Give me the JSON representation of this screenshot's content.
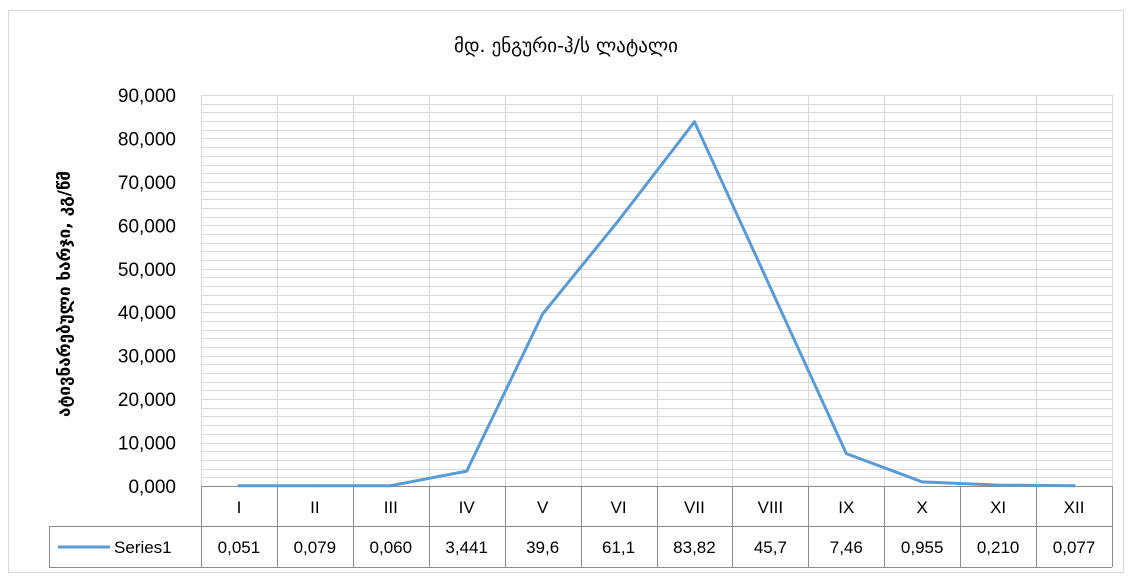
{
  "chart_data": {
    "type": "line",
    "title": "მდ. ენგური-ჰ/ს ლატალი",
    "ylabel": "ატივნარებული ხარჯი, კგ/წმ",
    "xlabel": "",
    "ylim": [
      0,
      90
    ],
    "yticks": [
      "0,000",
      "10,000",
      "20,000",
      "30,000",
      "40,000",
      "50,000",
      "60,000",
      "70,000",
      "80,000",
      "90,000"
    ],
    "ytick_values": [
      0,
      10,
      20,
      30,
      40,
      50,
      60,
      70,
      80,
      90
    ],
    "minor_grid_step": 2,
    "grid": true,
    "data_table": true,
    "categories": [
      "I",
      "II",
      "III",
      "IV",
      "V",
      "VI",
      "VII",
      "VIII",
      "IX",
      "X",
      "XI",
      "XII"
    ],
    "series": [
      {
        "name": "Series1",
        "color": "#5B9BD5",
        "values": [
          0.051,
          0.079,
          0.06,
          3.441,
          39.6,
          61.1,
          83.82,
          45.7,
          7.46,
          0.955,
          0.21,
          0.077
        ],
        "value_labels": [
          "0,051",
          "0,079",
          "0,060",
          "3,441",
          "39,6",
          "61,1",
          "83,82",
          "45,7",
          "7,46",
          "0,955",
          "0,210",
          "0,077"
        ]
      }
    ]
  }
}
